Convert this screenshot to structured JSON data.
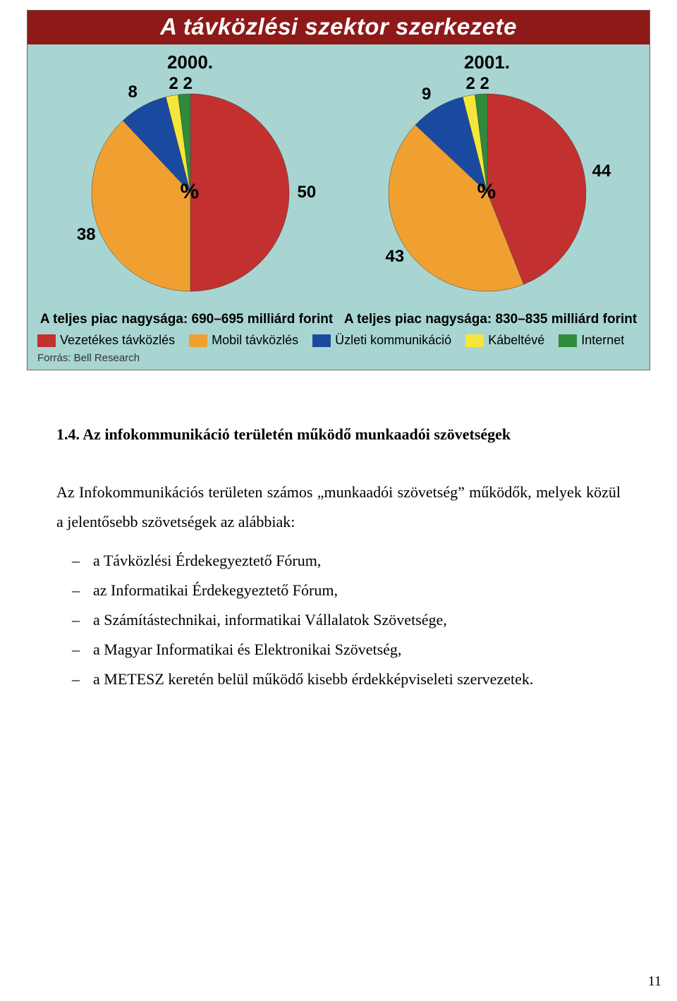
{
  "chart": {
    "title": "A távközlési szektor szerkezete",
    "background_color": "#a8d5d1",
    "title_bg": "#8e1919",
    "title_color": "#ffffff",
    "pies": [
      {
        "year": "2000.",
        "caption": "A teljes piac nagysága: 690–695 milliárd forint",
        "slices": [
          {
            "label": "50",
            "color": "#c23030"
          },
          {
            "label": "38",
            "color": "#f0a030"
          },
          {
            "label": "8",
            "color": "#1a4aa0"
          },
          {
            "label": "2",
            "color": "#f5e63a"
          },
          {
            "label": "2",
            "color": "#2e8b3a"
          }
        ]
      },
      {
        "year": "2001.",
        "caption": "A teljes piac nagysága: 830–835 milliárd forint",
        "slices": [
          {
            "label": "44",
            "color": "#c23030"
          },
          {
            "label": "43",
            "color": "#f0a030"
          },
          {
            "label": "9",
            "color": "#1a4aa0"
          },
          {
            "label": "2",
            "color": "#f5e63a"
          },
          {
            "label": "2",
            "color": "#2e8b3a"
          }
        ]
      }
    ],
    "legend": [
      {
        "label": "Vezetékes távközlés",
        "color": "#c23030"
      },
      {
        "label": "Mobil távközlés",
        "color": "#f0a030"
      },
      {
        "label": "Üzleti kommunikáció",
        "color": "#1a4aa0"
      },
      {
        "label": "Kábeltévé",
        "color": "#f5e63a"
      },
      {
        "label": "Internet",
        "color": "#2e8b3a"
      }
    ],
    "source": "Forrás: Bell Research",
    "pct_symbol": "%"
  },
  "text": {
    "heading": "1.4. Az infokommunikáció területén működő munkaadói szövetségek",
    "intro": "Az Infokommunikációs területen számos „munkaadói szövetség” működők, melyek közül a jelentősebb szövetségek az alábbiak:",
    "bullets": [
      "a Távközlési Érdekegyeztető Fórum,",
      "az Informatikai Érdekegyeztető Fórum,",
      "a Számítástechnikai, informatikai Vállalatok Szövetsége,",
      "a Magyar Informatikai és Elektronikai Szövetség,",
      "a METESZ keretén belül működő kisebb érdekképviseleti szervezetek."
    ]
  },
  "page_number": "11"
}
